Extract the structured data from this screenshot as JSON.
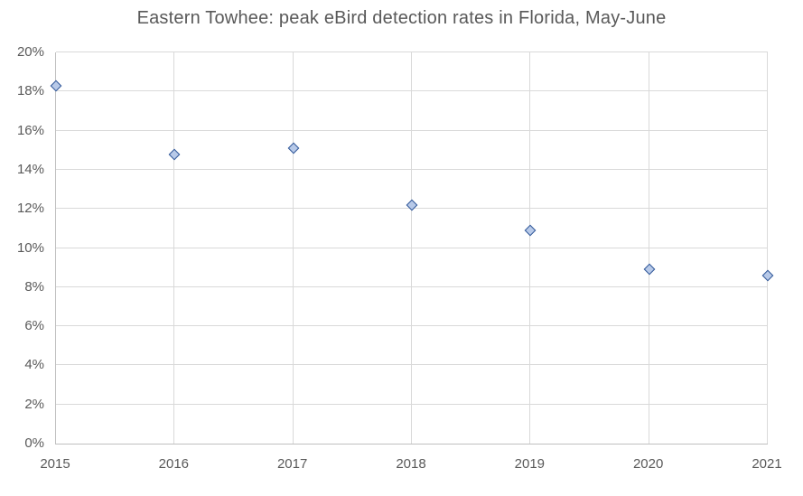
{
  "chart_data": {
    "type": "scatter",
    "title": "Eastern Towhee: peak eBird detection rates in Florida, May-June",
    "x": [
      2015,
      2016,
      2017,
      2018,
      2019,
      2020,
      2021
    ],
    "values": [
      18.3,
      14.8,
      15.1,
      12.2,
      10.9,
      8.9,
      8.6
    ],
    "unit": "percent",
    "xlabel": "",
    "ylabel": "",
    "xlim": [
      2015,
      2021
    ],
    "ylim": [
      0,
      20
    ],
    "y_tick_step": 2,
    "y_tick_labels": [
      "0%",
      "2%",
      "4%",
      "6%",
      "8%",
      "10%",
      "12%",
      "14%",
      "16%",
      "18%",
      "20%"
    ],
    "x_tick_labels": [
      "2015",
      "2016",
      "2017",
      "2018",
      "2019",
      "2020",
      "2021"
    ],
    "grid": true,
    "legend": "none",
    "marker": {
      "shape": "diamond",
      "fill": "#B7C9E8",
      "border": "#2E5597"
    },
    "colors": {
      "title": "#595959",
      "tick_label": "#595959",
      "gridline": "#D9D9D9",
      "axis_line": "#BFBFBF",
      "background": "#FFFFFF"
    }
  }
}
